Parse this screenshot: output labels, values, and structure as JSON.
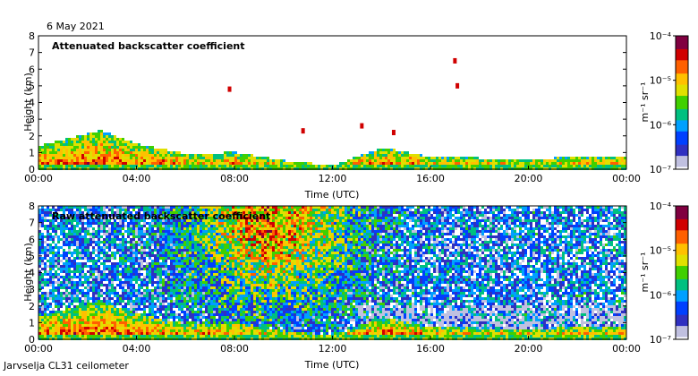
{
  "date_label": "6 May 2021",
  "footer": "Jarvselja CL31 ceilometer",
  "colorscale": {
    "unit_label": "m⁻¹ sr⁻¹",
    "ticks": [
      "10⁻⁴",
      "10⁻⁵",
      "10⁻⁶",
      "10⁻⁷"
    ],
    "colors": [
      "#800040",
      "#d00000",
      "#ff6000",
      "#ffc000",
      "#e0e000",
      "#40d000",
      "#00c080",
      "#00a0ff",
      "#0040ff",
      "#3030c0",
      "#c0c0e0",
      "#ffffff"
    ]
  },
  "chart_data": [
    {
      "type": "heatmap",
      "title": "Attenuated backscatter coefficient",
      "xlabel": "Time (UTC)",
      "ylabel": "Height (km)",
      "xlim": [
        0,
        24
      ],
      "ylim": [
        0,
        8
      ],
      "x_ticks": [
        0,
        4,
        8,
        12,
        16,
        20,
        24
      ],
      "x_tick_labels": [
        "00:00",
        "04:00",
        "08:00",
        "12:00",
        "16:00",
        "20:00",
        "00:00"
      ],
      "y_ticks": [
        0,
        1,
        2,
        3,
        4,
        5,
        6,
        7,
        8
      ],
      "y_tick_labels": [
        "0",
        "1",
        "2",
        "3",
        "4",
        "5",
        "6",
        "7",
        "8"
      ],
      "boundary_layer_top_km": [
        [
          0,
          1.5
        ],
        [
          2.5,
          2.4
        ],
        [
          4,
          1.6
        ],
        [
          6,
          1.0
        ],
        [
          8,
          1.1
        ],
        [
          10,
          0.6
        ],
        [
          12,
          0.3
        ],
        [
          14,
          1.4
        ],
        [
          16,
          0.8
        ],
        [
          20,
          0.7
        ],
        [
          24,
          0.9
        ]
      ],
      "cloud_spots_km": [
        [
          10.8,
          2.3
        ],
        [
          13.2,
          2.6
        ],
        [
          14.5,
          2.2
        ],
        [
          17.0,
          6.5
        ],
        [
          17.1,
          5.0
        ],
        [
          7.8,
          4.8
        ]
      ]
    },
    {
      "type": "heatmap",
      "title": "Raw attenuated backscatter coefficient",
      "xlabel": "Time (UTC)",
      "ylabel": "Height (km)",
      "xlim": [
        0,
        24
      ],
      "ylim": [
        0,
        8
      ],
      "x_ticks": [
        0,
        4,
        8,
        12,
        16,
        20,
        24
      ],
      "x_tick_labels": [
        "00:00",
        "04:00",
        "08:00",
        "12:00",
        "16:00",
        "20:00",
        "00:00"
      ],
      "y_ticks": [
        0,
        1,
        2,
        3,
        4,
        5,
        6,
        7,
        8
      ],
      "y_tick_labels": [
        "0",
        "1",
        "2",
        "3",
        "4",
        "5",
        "6",
        "7",
        "8"
      ],
      "noise_level": "high in daytime (06:00-13:00), low at night"
    }
  ]
}
